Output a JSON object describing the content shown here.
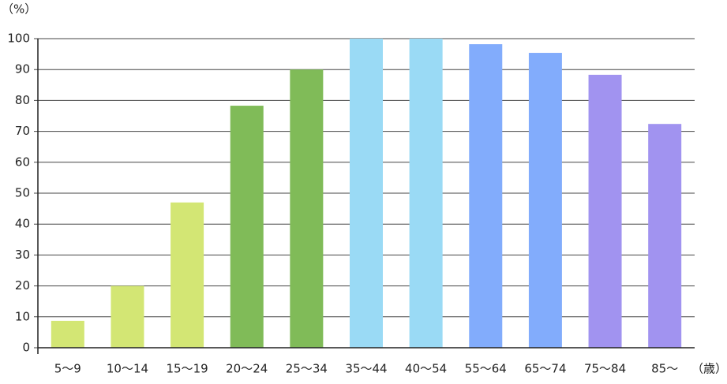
{
  "chart_data": {
    "type": "bar",
    "ylabel": "（%）",
    "xlabel": "（歳）",
    "categories": [
      "5～9",
      "10～14",
      "15～19",
      "20～24",
      "25～34",
      "35～44",
      "40～54",
      "55～64",
      "65～74",
      "75～84",
      "85～"
    ],
    "values": [
      8.7,
      20,
      47,
      78.3,
      90,
      100,
      100,
      98.2,
      95.4,
      88.3,
      72.4
    ],
    "colors": [
      "#d3e674",
      "#d3e674",
      "#d3e674",
      "#80bb58",
      "#80bb58",
      "#9adaf5",
      "#9adaf5",
      "#82acfc",
      "#82acfc",
      "#a193f0",
      "#a193f0"
    ],
    "ylim": [
      0,
      100
    ],
    "yticks": [
      0,
      10,
      20,
      30,
      40,
      50,
      60,
      70,
      80,
      90,
      100
    ],
    "grid": true
  }
}
